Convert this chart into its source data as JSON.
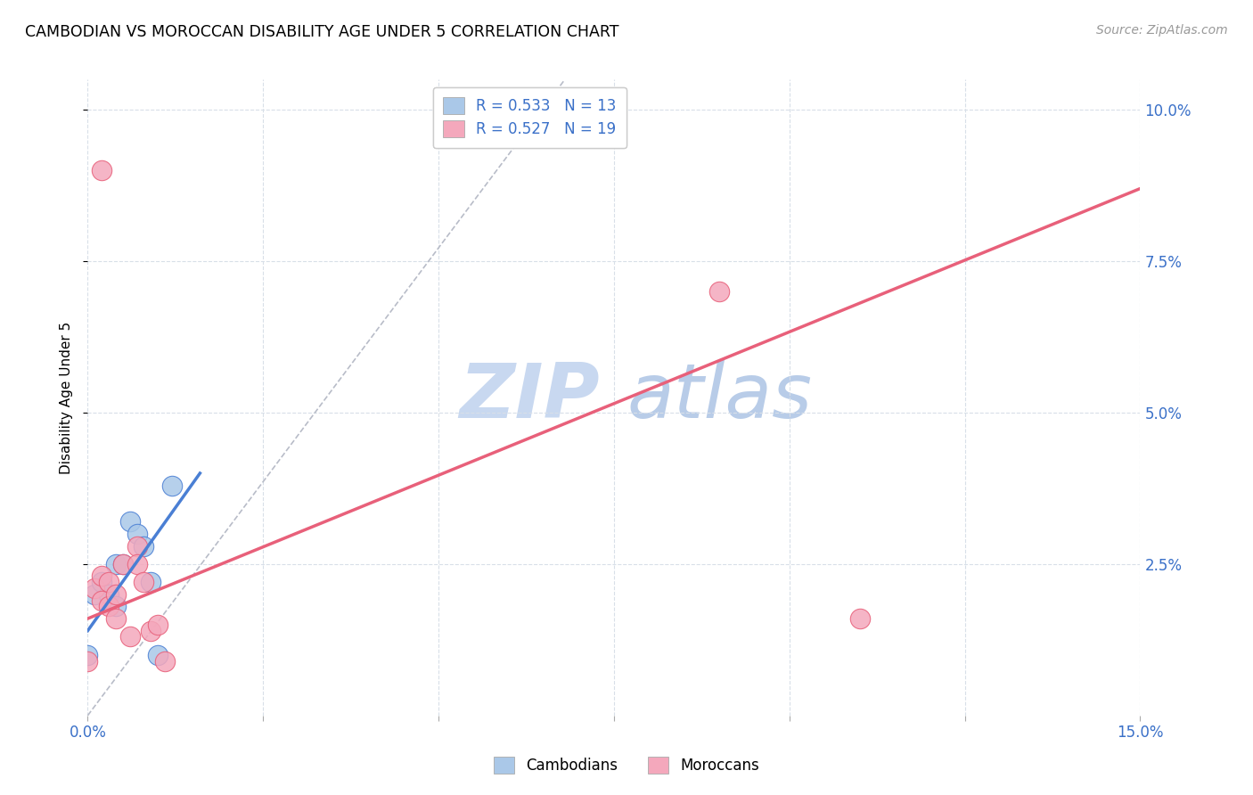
{
  "title": "CAMBODIAN VS MOROCCAN DISABILITY AGE UNDER 5 CORRELATION CHART",
  "source": "Source: ZipAtlas.com",
  "ylabel": "Disability Age Under 5",
  "xlim": [
    0.0,
    0.15
  ],
  "ylim": [
    0.0,
    0.105
  ],
  "xticks": [
    0.0,
    0.025,
    0.05,
    0.075,
    0.1,
    0.125,
    0.15
  ],
  "yticks": [
    0.025,
    0.05,
    0.075,
    0.1
  ],
  "cambodian_R": "0.533",
  "cambodian_N": "13",
  "moroccan_R": "0.527",
  "moroccan_N": "19",
  "cambodian_color": "#aac8e8",
  "moroccan_color": "#f4a8bc",
  "cambodian_line_color": "#4a7fd4",
  "moroccan_line_color": "#e8607a",
  "grid_color": "#d8dfe8",
  "cambodian_points": [
    [
      0.0,
      0.01
    ],
    [
      0.001,
      0.02
    ],
    [
      0.002,
      0.022
    ],
    [
      0.003,
      0.02
    ],
    [
      0.004,
      0.018
    ],
    [
      0.004,
      0.025
    ],
    [
      0.005,
      0.025
    ],
    [
      0.006,
      0.032
    ],
    [
      0.007,
      0.03
    ],
    [
      0.008,
      0.028
    ],
    [
      0.009,
      0.022
    ],
    [
      0.01,
      0.01
    ],
    [
      0.012,
      0.038
    ]
  ],
  "moroccan_points": [
    [
      0.002,
      0.09
    ],
    [
      0.0,
      0.009
    ],
    [
      0.001,
      0.021
    ],
    [
      0.002,
      0.023
    ],
    [
      0.002,
      0.019
    ],
    [
      0.003,
      0.022
    ],
    [
      0.003,
      0.018
    ],
    [
      0.004,
      0.02
    ],
    [
      0.004,
      0.016
    ],
    [
      0.005,
      0.025
    ],
    [
      0.006,
      0.013
    ],
    [
      0.007,
      0.028
    ],
    [
      0.007,
      0.025
    ],
    [
      0.008,
      0.022
    ],
    [
      0.009,
      0.014
    ],
    [
      0.01,
      0.015
    ],
    [
      0.011,
      0.009
    ],
    [
      0.09,
      0.07
    ],
    [
      0.11,
      0.016
    ]
  ],
  "cambodian_trendline": [
    [
      0.0,
      0.014
    ],
    [
      0.016,
      0.04
    ]
  ],
  "moroccan_trendline": [
    [
      0.0,
      0.016
    ],
    [
      0.15,
      0.087
    ]
  ],
  "diag_line": [
    [
      0.0,
      0.0
    ],
    [
      0.068,
      0.105
    ]
  ]
}
